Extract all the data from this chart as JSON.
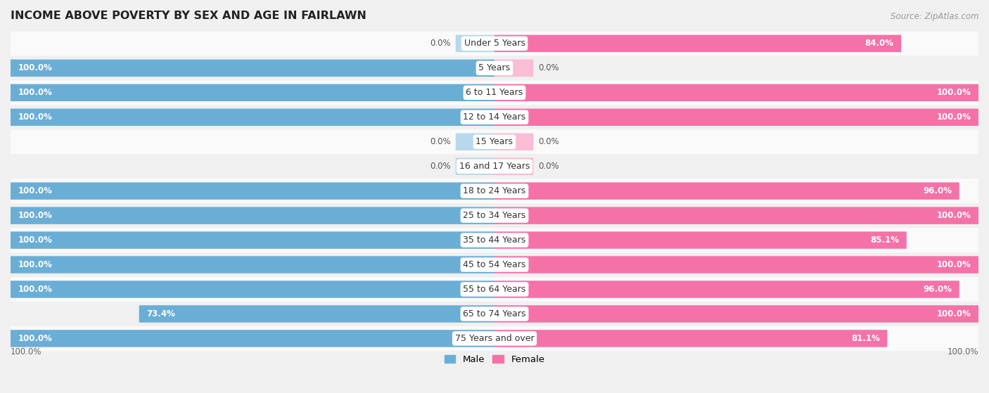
{
  "title": "INCOME ABOVE POVERTY BY SEX AND AGE IN FAIRLAWN",
  "source": "Source: ZipAtlas.com",
  "categories": [
    "Under 5 Years",
    "5 Years",
    "6 to 11 Years",
    "12 to 14 Years",
    "15 Years",
    "16 and 17 Years",
    "18 to 24 Years",
    "25 to 34 Years",
    "35 to 44 Years",
    "45 to 54 Years",
    "55 to 64 Years",
    "65 to 74 Years",
    "75 Years and over"
  ],
  "male": [
    0.0,
    100.0,
    100.0,
    100.0,
    0.0,
    0.0,
    100.0,
    100.0,
    100.0,
    100.0,
    100.0,
    73.4,
    100.0
  ],
  "female": [
    84.0,
    0.0,
    100.0,
    100.0,
    0.0,
    0.0,
    96.0,
    100.0,
    85.1,
    100.0,
    96.0,
    100.0,
    81.1
  ],
  "male_color": "#6aaed6",
  "female_color": "#f472a8",
  "male_light_color": "#b8d8ee",
  "female_light_color": "#f9bdd5",
  "male_label": "Male",
  "female_label": "Female",
  "bg_row_light": "#f0f0f0",
  "bg_row_white": "#fafafa",
  "bar_height": 0.62,
  "title_fontsize": 11.5,
  "label_fontsize": 9.0,
  "value_fontsize": 8.5,
  "legend_fontsize": 9.5
}
